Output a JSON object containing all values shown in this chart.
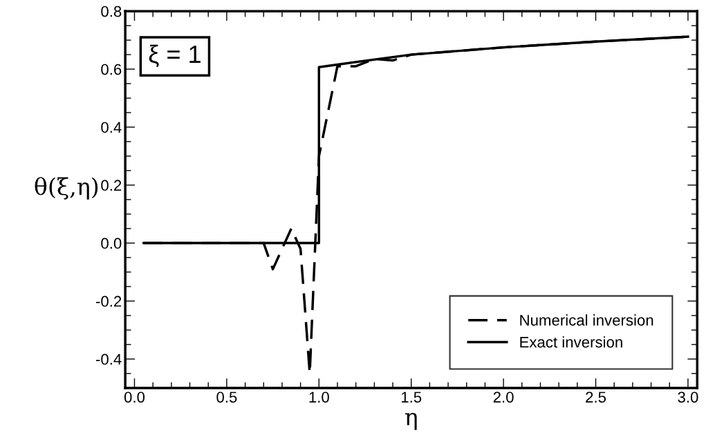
{
  "chart_data": {
    "type": "line",
    "xlabel": "η",
    "ylabel": "θ(ξ,η)",
    "annotations": [
      "ξ = 1"
    ],
    "xlim": [
      -0.05,
      3.05
    ],
    "xticks": [
      {
        "value": 0,
        "label": "0.0"
      },
      {
        "value": 0.5,
        "label": "0.5"
      },
      {
        "value": 1,
        "label": "1.0"
      },
      {
        "value": 1.5,
        "label": "1.5"
      },
      {
        "value": 2,
        "label": "2.0"
      },
      {
        "value": 2.5,
        "label": "2.5"
      },
      {
        "value": 3,
        "label": "3.0"
      }
    ],
    "ylim": [
      -0.5,
      0.8
    ],
    "yticks": [
      {
        "value": -0.4,
        "label": "-0.4"
      },
      {
        "value": -0.2,
        "label": "-0.2"
      },
      {
        "value": 0,
        "label": "0.0"
      },
      {
        "value": 0.2,
        "label": "0.2"
      },
      {
        "value": 0.4,
        "label": "0.4"
      },
      {
        "value": 0.6,
        "label": "0.6"
      },
      {
        "value": 0.8,
        "label": "0.8"
      }
    ],
    "grid": false,
    "legend": "bottom right",
    "marker": "none",
    "series": [
      {
        "name": "Numerical inversion",
        "color": "#000000",
        "line_style": "dashed",
        "x": [
          0.05,
          0.7,
          0.75,
          0.85,
          0.9,
          0.95,
          1.0,
          1.1,
          1.2,
          1.3,
          1.4,
          1.5,
          2.0,
          2.5,
          3.0
        ],
        "values": [
          0,
          0,
          -0.09,
          0.05,
          -0.02,
          -0.45,
          0.3,
          0.61,
          0.61,
          0.635,
          0.63,
          0.65,
          0.675,
          0.695,
          0.712
        ]
      },
      {
        "name": "Exact inversion",
        "color": "#000000",
        "line_style": "solid",
        "x": [
          0.05,
          1.0,
          1.0,
          1.5,
          2.0,
          2.5,
          3.0
        ],
        "values": [
          0,
          0,
          0.607,
          0.65,
          0.675,
          0.695,
          0.712
        ]
      }
    ]
  }
}
